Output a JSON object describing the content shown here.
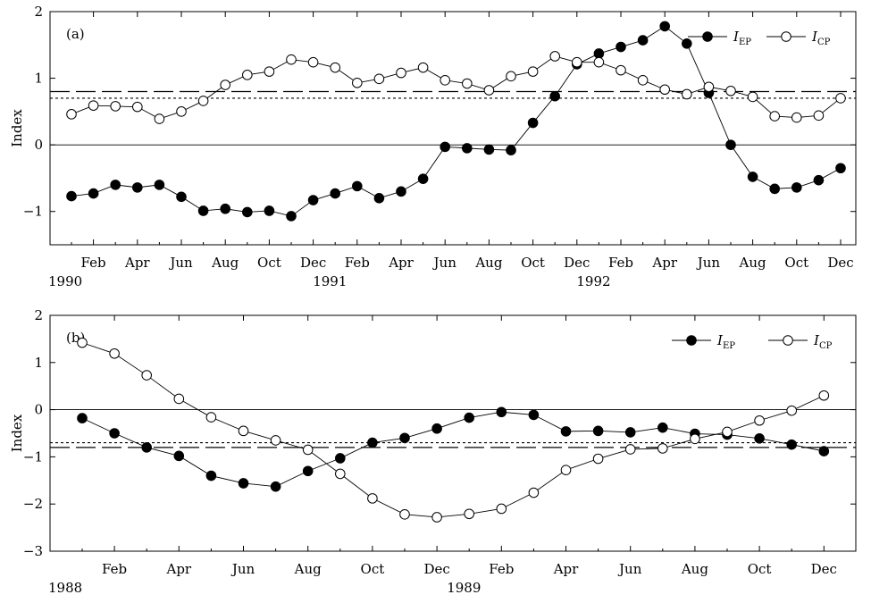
{
  "chart_data": [
    {
      "type": "line",
      "panel_label": "(a)",
      "ylabel": "Index",
      "ylim": [
        -1.5,
        2
      ],
      "yticks": [
        "2",
        "1",
        "0",
        "−1"
      ],
      "ytick_values": [
        2,
        1,
        0,
        -1
      ],
      "xticks": [
        {
          "label": "Feb",
          "month": 1
        },
        {
          "label": "Apr",
          "month": 3
        },
        {
          "label": "Jun",
          "month": 5
        },
        {
          "label": "Aug",
          "month": 7
        },
        {
          "label": "Oct",
          "month": 9
        },
        {
          "label": "Dec",
          "month": 11
        },
        {
          "label": "Feb",
          "month": 13
        },
        {
          "label": "Apr",
          "month": 15
        },
        {
          "label": "Jun",
          "month": 17
        },
        {
          "label": "Aug",
          "month": 19
        },
        {
          "label": "Oct",
          "month": 21
        },
        {
          "label": "Dec",
          "month": 23
        },
        {
          "label": "Feb",
          "month": 25
        },
        {
          "label": "Apr",
          "month": 27
        },
        {
          "label": "Jun",
          "month": 29
        },
        {
          "label": "Aug",
          "month": 31
        },
        {
          "label": "Oct",
          "month": 33
        },
        {
          "label": "Dec",
          "month": 35
        }
      ],
      "years": [
        {
          "label": "1990",
          "month": 0
        },
        {
          "label": "1991",
          "month": 12
        },
        {
          "label": "1992",
          "month": 24
        }
      ],
      "dashed_threshold": 0.8,
      "dotted_threshold": 0.7,
      "legend": {
        "ep_main": "I",
        "ep_sub": "EP",
        "cp_main": "I",
        "cp_sub": "CP"
      },
      "series": [
        {
          "name": "I_EP",
          "marker": "filled",
          "values": [
            -0.77,
            -0.73,
            -0.6,
            -0.64,
            -0.6,
            -0.78,
            -0.99,
            -0.96,
            -1.01,
            -0.99,
            -1.07,
            -0.83,
            -0.73,
            -0.62,
            -0.8,
            -0.7,
            -0.51,
            -0.03,
            -0.05,
            -0.07,
            -0.08,
            0.33,
            0.73,
            1.21,
            1.37,
            1.47,
            1.57,
            1.78,
            1.52,
            0.78,
            0.0,
            -0.48,
            -0.66,
            -0.64,
            -0.53,
            -0.35
          ]
        },
        {
          "name": "I_CP",
          "marker": "open",
          "values": [
            0.46,
            0.59,
            0.58,
            0.57,
            0.39,
            0.5,
            0.66,
            0.9,
            1.05,
            1.1,
            1.28,
            1.24,
            1.16,
            0.93,
            0.99,
            1.08,
            1.16,
            0.97,
            0.92,
            0.82,
            1.03,
            1.1,
            1.33,
            1.24,
            1.24,
            1.12,
            0.97,
            0.83,
            0.76,
            0.87,
            0.81,
            0.72,
            0.43,
            0.41,
            0.44,
            0.7
          ]
        }
      ]
    },
    {
      "type": "line",
      "panel_label": "(b)",
      "ylabel": "Index",
      "ylim": [
        -3,
        2
      ],
      "yticks": [
        "2",
        "1",
        "0",
        "−1",
        "−2",
        "−3"
      ],
      "ytick_values": [
        2,
        1,
        0,
        -1,
        -2,
        -3
      ],
      "xticks": [
        {
          "label": "Feb",
          "month": 1
        },
        {
          "label": "Apr",
          "month": 3
        },
        {
          "label": "Jun",
          "month": 5
        },
        {
          "label": "Aug",
          "month": 7
        },
        {
          "label": "Oct",
          "month": 9
        },
        {
          "label": "Dec",
          "month": 11
        },
        {
          "label": "Feb",
          "month": 13
        },
        {
          "label": "Apr",
          "month": 15
        },
        {
          "label": "Jun",
          "month": 17
        },
        {
          "label": "Aug",
          "month": 19
        },
        {
          "label": "Oct",
          "month": 21
        },
        {
          "label": "Dec",
          "month": 23
        }
      ],
      "years": [
        {
          "label": "1988",
          "month": 0
        },
        {
          "label": "1989",
          "month": 12
        }
      ],
      "dashed_threshold": -0.8,
      "dotted_threshold": -0.7,
      "legend": {
        "ep_main": "I",
        "ep_sub": "EP",
        "cp_main": "I",
        "cp_sub": "CP"
      },
      "series": [
        {
          "name": "I_EP",
          "marker": "filled",
          "values": [
            -0.18,
            -0.5,
            -0.8,
            -0.98,
            -1.4,
            -1.56,
            -1.63,
            -1.3,
            -1.03,
            -0.7,
            -0.6,
            -0.4,
            -0.17,
            -0.05,
            -0.11,
            -0.46,
            -0.45,
            -0.48,
            -0.38,
            -0.51,
            -0.53,
            -0.61,
            -0.74,
            -0.88
          ]
        },
        {
          "name": "I_CP",
          "marker": "open",
          "values": [
            1.42,
            1.19,
            0.73,
            0.23,
            -0.16,
            -0.45,
            -0.65,
            -0.85,
            -1.36,
            -1.88,
            -2.22,
            -2.28,
            -2.21,
            -2.1,
            -1.76,
            -1.28,
            -1.04,
            -0.84,
            -0.82,
            -0.62,
            -0.47,
            -0.23,
            -0.02,
            0.3
          ]
        }
      ]
    }
  ]
}
